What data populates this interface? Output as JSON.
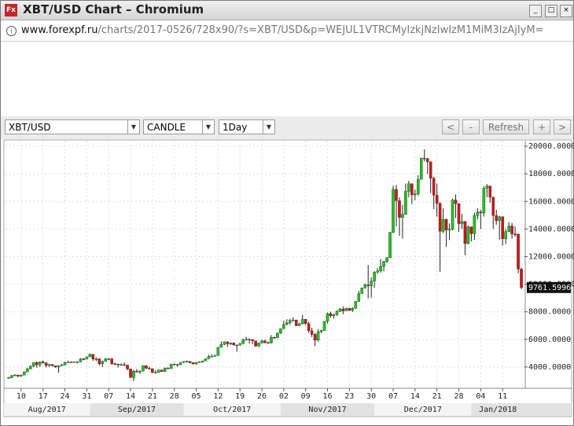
{
  "window": {
    "title": "XBT/USD Chart – Chromium"
  },
  "address_bar": {
    "host": "www.forexpf.ru",
    "path": "/charts/2017-0526/728x90/?s=XBT/USD&p=WEJUL1VTRCMyIzkjNzIwIzM1MiM3IzAjIyM="
  },
  "toolbar": {
    "symbol": "XBT/USD",
    "chart_type": "CANDLE",
    "period": "1Day",
    "buttons": [
      "<",
      "-",
      "Refresh",
      "+",
      ">"
    ]
  },
  "chart_data": {
    "type": "candlestick",
    "up_color": "#1fc41f",
    "down_color": "#d21414",
    "grid": true,
    "xlim": [
      "2017-08-05",
      "2018-01-18"
    ],
    "ylim": [
      2460,
      20400
    ],
    "yticks": [
      {
        "value": 4000,
        "label": "4000.0000"
      },
      {
        "value": 6000,
        "label": "6000.0000"
      },
      {
        "value": 8000,
        "label": "8000.0000"
      },
      {
        "value": 10000,
        "label": "10000.0000"
      },
      {
        "value": 12000,
        "label": "12000.0000"
      },
      {
        "value": 14000,
        "label": "14000.0000"
      },
      {
        "value": 16000,
        "label": "16000.0000"
      },
      {
        "value": 18000,
        "label": "18000.0000"
      },
      {
        "value": 20000,
        "label": "20000.0000"
      }
    ],
    "xticks": [
      {
        "value": "2017-08-10",
        "label": "10"
      },
      {
        "value": "2017-08-17",
        "label": "17"
      },
      {
        "value": "2017-08-24",
        "label": "24"
      },
      {
        "value": "2017-08-31",
        "label": "31"
      },
      {
        "value": "2017-09-07",
        "label": "07"
      },
      {
        "value": "2017-09-14",
        "label": "14"
      },
      {
        "value": "2017-09-21",
        "label": "21"
      },
      {
        "value": "2017-09-28",
        "label": "28"
      },
      {
        "value": "2017-10-05",
        "label": "05"
      },
      {
        "value": "2017-10-12",
        "label": "12"
      },
      {
        "value": "2017-10-19",
        "label": "19"
      },
      {
        "value": "2017-10-26",
        "label": "26"
      },
      {
        "value": "2017-11-02",
        "label": "02"
      },
      {
        "value": "2017-11-09",
        "label": "09"
      },
      {
        "value": "2017-11-16",
        "label": "16"
      },
      {
        "value": "2017-11-23",
        "label": "23"
      },
      {
        "value": "2017-11-30",
        "label": "30"
      },
      {
        "value": "2017-12-07",
        "label": "07"
      },
      {
        "value": "2017-12-14",
        "label": "14"
      },
      {
        "value": "2017-12-21",
        "label": "21"
      },
      {
        "value": "2017-12-28",
        "label": "28"
      },
      {
        "value": "2018-01-04",
        "label": "04"
      },
      {
        "value": "2018-01-11",
        "label": "11"
      }
    ],
    "month_labels": [
      {
        "value": "2017-08-01",
        "label": "Aug/2017"
      },
      {
        "value": "2017-09-01",
        "label": "Sep/2017"
      },
      {
        "value": "2017-10-01",
        "label": "Oct/2017"
      },
      {
        "value": "2017-11-01",
        "label": "Nov/2017"
      },
      {
        "value": "2017-12-01",
        "label": "Dec/2017"
      },
      {
        "value": "2018-01-01",
        "label": "Jan/2018"
      }
    ],
    "x": [
      "2017-08-06",
      "2017-08-07",
      "2017-08-08",
      "2017-08-09",
      "2017-08-10",
      "2017-08-11",
      "2017-08-12",
      "2017-08-13",
      "2017-08-14",
      "2017-08-15",
      "2017-08-16",
      "2017-08-17",
      "2017-08-18",
      "2017-08-19",
      "2017-08-20",
      "2017-08-21",
      "2017-08-22",
      "2017-08-23",
      "2017-08-24",
      "2017-08-25",
      "2017-08-26",
      "2017-08-27",
      "2017-08-28",
      "2017-08-29",
      "2017-08-30",
      "2017-08-31",
      "2017-09-01",
      "2017-09-02",
      "2017-09-03",
      "2017-09-04",
      "2017-09-05",
      "2017-09-06",
      "2017-09-07",
      "2017-09-08",
      "2017-09-09",
      "2017-09-10",
      "2017-09-11",
      "2017-09-12",
      "2017-09-13",
      "2017-09-14",
      "2017-09-15",
      "2017-09-16",
      "2017-09-17",
      "2017-09-18",
      "2017-09-19",
      "2017-09-20",
      "2017-09-21",
      "2017-09-22",
      "2017-09-23",
      "2017-09-24",
      "2017-09-25",
      "2017-09-26",
      "2017-09-27",
      "2017-09-28",
      "2017-09-29",
      "2017-09-30",
      "2017-10-01",
      "2017-10-02",
      "2017-10-03",
      "2017-10-04",
      "2017-10-05",
      "2017-10-06",
      "2017-10-07",
      "2017-10-08",
      "2017-10-09",
      "2017-10-10",
      "2017-10-11",
      "2017-10-12",
      "2017-10-13",
      "2017-10-14",
      "2017-10-15",
      "2017-10-16",
      "2017-10-17",
      "2017-10-18",
      "2017-10-19",
      "2017-10-20",
      "2017-10-21",
      "2017-10-22",
      "2017-10-23",
      "2017-10-24",
      "2017-10-25",
      "2017-10-26",
      "2017-10-27",
      "2017-10-28",
      "2017-10-29",
      "2017-10-30",
      "2017-10-31",
      "2017-11-01",
      "2017-11-02",
      "2017-11-03",
      "2017-11-04",
      "2017-11-05",
      "2017-11-06",
      "2017-11-07",
      "2017-11-08",
      "2017-11-09",
      "2017-11-10",
      "2017-11-11",
      "2017-11-12",
      "2017-11-13",
      "2017-11-14",
      "2017-11-15",
      "2017-11-16",
      "2017-11-17",
      "2017-11-18",
      "2017-11-19",
      "2017-11-20",
      "2017-11-21",
      "2017-11-22",
      "2017-11-23",
      "2017-11-24",
      "2017-11-25",
      "2017-11-26",
      "2017-11-27",
      "2017-11-28",
      "2017-11-29",
      "2017-11-30",
      "2017-12-01",
      "2017-12-02",
      "2017-12-03",
      "2017-12-04",
      "2017-12-05",
      "2017-12-06",
      "2017-12-07",
      "2017-12-08",
      "2017-12-09",
      "2017-12-10",
      "2017-12-11",
      "2017-12-12",
      "2017-12-13",
      "2017-12-14",
      "2017-12-15",
      "2017-12-16",
      "2017-12-17",
      "2017-12-18",
      "2017-12-19",
      "2017-12-20",
      "2017-12-21",
      "2017-12-22",
      "2017-12-23",
      "2017-12-24",
      "2017-12-25",
      "2017-12-26",
      "2017-12-27",
      "2017-12-28",
      "2017-12-29",
      "2017-12-30",
      "2017-12-31",
      "2018-01-01",
      "2018-01-02",
      "2018-01-03",
      "2018-01-04",
      "2018-01-05",
      "2018-01-06",
      "2018-01-07",
      "2018-01-08",
      "2018-01-09",
      "2018-01-10",
      "2018-01-11",
      "2018-01-12",
      "2018-01-13",
      "2018-01-14",
      "2018-01-15",
      "2018-01-16",
      "2018-01-17"
    ],
    "open": [
      3200,
      3230,
      3390,
      3420,
      3340,
      3420,
      3650,
      3860,
      4060,
      4320,
      4160,
      4380,
      4290,
      4110,
      4190,
      4090,
      4000,
      4090,
      4150,
      4330,
      4370,
      4350,
      4380,
      4390,
      4580,
      4570,
      4740,
      4920,
      4580,
      4600,
      4240,
      4400,
      4600,
      4590,
      4230,
      4220,
      4160,
      4170,
      4140,
      3860,
      3240,
      3700,
      3690,
      3700,
      4100,
      3910,
      3880,
      3600,
      3610,
      3790,
      3670,
      3930,
      3880,
      4210,
      4190,
      4160,
      4340,
      4400,
      4410,
      4310,
      4220,
      4330,
      4370,
      4440,
      4610,
      4770,
      4780,
      4830,
      5430,
      5640,
      5830,
      5680,
      5750,
      5600,
      5580,
      5710,
      5980,
      6020,
      5990,
      5900,
      5520,
      5740,
      5890,
      5770,
      5750,
      6150,
      6130,
      6470,
      6770,
      7080,
      7210,
      7380,
      7410,
      6990,
      7140,
      7460,
      7140,
      6620,
      6360,
      5950,
      6560,
      6640,
      7320,
      7870,
      7720,
      7790,
      8040,
      8200,
      8070,
      8250,
      8100,
      8250,
      8750,
      9320,
      9730,
      9950,
      9880,
      10230,
      10880,
      10960,
      11290,
      11660,
      11920,
      13750,
      16870,
      16050,
      14840,
      15060,
      16730,
      17280,
      16470,
      16550,
      17600,
      19140,
      19100,
      18870,
      17680,
      16450,
      15850,
      13830,
      14700,
      13930,
      13990,
      16100,
      15840,
      14390,
      14540,
      12950,
      14160,
      13660,
      14980,
      15230,
      15160,
      16950,
      17120,
      16310,
      14980,
      14600,
      14890,
      13290,
      13810,
      14220,
      13650,
      13640,
      11100
    ],
    "high": [
      3290,
      3420,
      3480,
      3440,
      3450,
      3690,
      3950,
      4130,
      4330,
      4400,
      4400,
      4480,
      4370,
      4230,
      4200,
      4100,
      4130,
      4250,
      4370,
      4450,
      4380,
      4400,
      4400,
      4640,
      4650,
      4760,
      4980,
      4930,
      4700,
      4600,
      4470,
      4640,
      4640,
      4660,
      4320,
      4240,
      4280,
      4340,
      4150,
      3880,
      3800,
      3860,
      3780,
      4120,
      4100,
      4030,
      3890,
      3760,
      3810,
      3790,
      3970,
      3970,
      4220,
      4250,
      4220,
      4360,
      4410,
      4470,
      4430,
      4350,
      4360,
      4420,
      4460,
      4620,
      4880,
      4920,
      4880,
      5450,
      5860,
      5840,
      5850,
      5780,
      5770,
      5600,
      5740,
      6060,
      6190,
      6070,
      6030,
      5900,
      5760,
      5970,
      5980,
      5850,
      6310,
      6200,
      6480,
      6800,
      7360,
      7460,
      7490,
      7600,
      7420,
      7200,
      7780,
      7450,
      7310,
      6850,
      6470,
      6740,
      6720,
      7330,
      7950,
      8010,
      7850,
      8110,
      8280,
      8380,
      8300,
      8290,
      8330,
      8800,
      9520,
      9740,
      10060,
      11400,
      10500,
      10940,
      11160,
      11830,
      11680,
      11970,
      13790,
      17130,
      17200,
      16290,
      15730,
      17300,
      17500,
      17300,
      16860,
      17900,
      19160,
      19780,
      19150,
      18900,
      17800,
      17300,
      15950,
      15500,
      14750,
      14400,
      16200,
      16500,
      15860,
      15100,
      14580,
      14260,
      14170,
      15200,
      15500,
      15400,
      17100,
      17250,
      17130,
      16320,
      15400,
      14950,
      14900,
      14000,
      14500,
      14450,
      14200,
      13650,
      11200
    ],
    "low": [
      3160,
      3200,
      3350,
      3260,
      3310,
      3400,
      3630,
      3840,
      3990,
      3950,
      4000,
      4250,
      3960,
      4010,
      4040,
      3950,
      3580,
      4070,
      4120,
      4310,
      4300,
      4320,
      4260,
      4340,
      4500,
      4560,
      4730,
      4450,
      4420,
      4110,
      4000,
      4400,
      4490,
      4170,
      4150,
      3950,
      4120,
      4080,
      3760,
      3220,
      2980,
      3590,
      3490,
      3690,
      3850,
      3850,
      3580,
      3530,
      3580,
      3650,
      3660,
      3860,
      3880,
      4130,
      4010,
      4150,
      4290,
      4380,
      4270,
      4190,
      4180,
      4320,
      4320,
      4430,
      4560,
      4730,
      4750,
      4830,
      5400,
      5580,
      5450,
      5600,
      5540,
      5110,
      5560,
      5630,
      5910,
      5700,
      5650,
      5450,
      5450,
      5700,
      5700,
      5700,
      5700,
      6050,
      6090,
      6380,
      6760,
      7030,
      7060,
      7300,
      6960,
      6970,
      7080,
      7050,
      6470,
      6170,
      5510,
      5850,
      6460,
      6640,
      7150,
      7580,
      7510,
      7710,
      7980,
      7830,
      8070,
      8060,
      8000,
      8220,
      8730,
      9320,
      9680,
      8980,
      9030,
      9750,
      10750,
      10830,
      10930,
      11530,
      11900,
      13700,
      14200,
      13500,
      13300,
      15030,
      16300,
      15800,
      16100,
      16400,
      17600,
      18900,
      18000,
      16600,
      15450,
      14900,
      10900,
      13700,
      12700,
      13200,
      13900,
      14800,
      13800,
      14000,
      12100,
      12900,
      13100,
      13200,
      14700,
      14000,
      14900,
      16300,
      15900,
      14000,
      14300,
      13200,
      12800,
      12900,
      13800,
      13300,
      13450,
      10800,
      9640
    ],
    "close": [
      3230,
      3390,
      3420,
      3340,
      3420,
      3650,
      3860,
      4060,
      4320,
      4160,
      4380,
      4290,
      4110,
      4190,
      4090,
      4000,
      4090,
      4150,
      4330,
      4370,
      4350,
      4380,
      4390,
      4580,
      4570,
      4740,
      4920,
      4580,
      4600,
      4240,
      4400,
      4600,
      4590,
      4230,
      4220,
      4160,
      4170,
      4140,
      3860,
      3240,
      3700,
      3690,
      3700,
      4100,
      3910,
      3880,
      3600,
      3610,
      3790,
      3670,
      3930,
      3880,
      4210,
      4190,
      4160,
      4340,
      4400,
      4410,
      4310,
      4220,
      4330,
      4370,
      4440,
      4610,
      4770,
      4780,
      4830,
      5430,
      5640,
      5830,
      5680,
      5750,
      5600,
      5580,
      5710,
      5980,
      6020,
      5990,
      5900,
      5520,
      5740,
      5890,
      5770,
      5750,
      6150,
      6130,
      6470,
      6770,
      7080,
      7210,
      7380,
      7410,
      6990,
      7140,
      7460,
      7140,
      6620,
      6360,
      5950,
      6560,
      6640,
      7320,
      7870,
      7720,
      7790,
      8040,
      8200,
      8070,
      8250,
      8100,
      8250,
      8750,
      9320,
      9730,
      9950,
      9880,
      10230,
      10880,
      10960,
      11290,
      11660,
      11920,
      13750,
      16870,
      16050,
      14840,
      15060,
      16730,
      17280,
      16470,
      16550,
      17600,
      19140,
      19100,
      18870,
      17680,
      16450,
      15850,
      13830,
      14700,
      13930,
      13990,
      16100,
      15840,
      14390,
      14540,
      12950,
      14160,
      13660,
      14980,
      15230,
      15160,
      16950,
      17120,
      16310,
      14980,
      14600,
      14890,
      13290,
      13810,
      14220,
      13650,
      13640,
      11100,
      9761.5996
    ]
  }
}
